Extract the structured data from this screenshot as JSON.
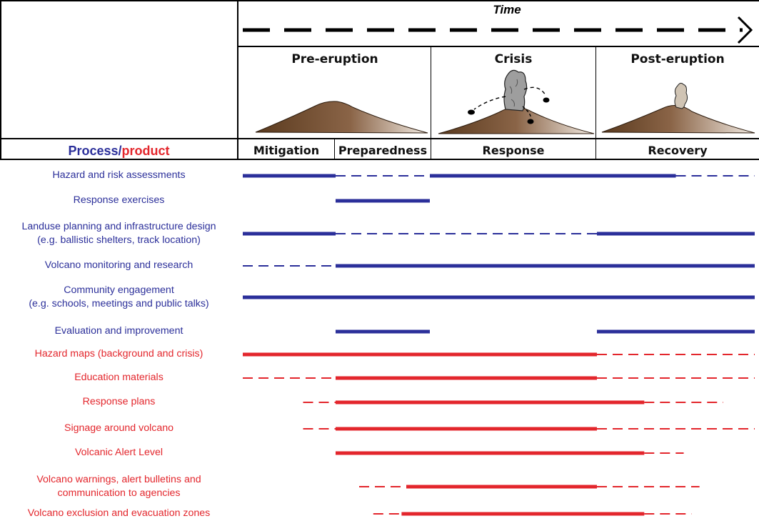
{
  "time_label": "Time",
  "phases": [
    {
      "title": "Pre-eruption"
    },
    {
      "title": "Crisis"
    },
    {
      "title": "Post-eruption"
    }
  ],
  "stages": [
    "Mitigation",
    "Preparedness",
    "Response",
    "Recovery"
  ],
  "header": {
    "process": "Process",
    "separator": "/",
    "product": "product"
  },
  "colors": {
    "process": "#2b2f9a",
    "product": "#e3262c",
    "ground_dark": "#5a3a1e",
    "ground_light": "#efe6dc",
    "plume": "#9e9e9e"
  },
  "chart_data": {
    "type": "timeline",
    "x_axis": "Time",
    "phases": [
      "Pre-eruption",
      "Crisis",
      "Post-eruption"
    ],
    "stages": [
      "Mitigation",
      "Preparedness",
      "Response",
      "Recovery"
    ],
    "stage_bounds": [
      [
        0,
        1
      ],
      [
        1,
        2
      ],
      [
        2,
        3
      ],
      [
        3,
        4
      ]
    ],
    "rows": [
      {
        "label": "Hazard and risk assessments",
        "kind": "process",
        "segments": [
          {
            "from": 0.0,
            "to": 1.0,
            "style": "solid"
          },
          {
            "from": 1.0,
            "to": 2.0,
            "style": "dashed"
          },
          {
            "from": 2.0,
            "to": 3.5,
            "style": "solid"
          },
          {
            "from": 3.5,
            "to": 4.0,
            "style": "dashed"
          }
        ]
      },
      {
        "label": "Response exercises",
        "kind": "process",
        "segments": [
          {
            "from": 1.0,
            "to": 2.0,
            "style": "solid"
          }
        ]
      },
      {
        "label": "Landuse planning and infrastructure design\n(e.g. ballistic shelters, track location)",
        "kind": "process",
        "segments": [
          {
            "from": 0.0,
            "to": 1.0,
            "style": "solid"
          },
          {
            "from": 1.0,
            "to": 3.0,
            "style": "dashed"
          },
          {
            "from": 3.0,
            "to": 4.0,
            "style": "solid"
          }
        ]
      },
      {
        "label": "Volcano monitoring and research",
        "kind": "process",
        "segments": [
          {
            "from": 0.0,
            "to": 1.0,
            "style": "dashed"
          },
          {
            "from": 1.0,
            "to": 4.0,
            "style": "solid"
          }
        ]
      },
      {
        "label": "Community engagement\n(e.g. schools, meetings and public talks)",
        "kind": "process",
        "segments": [
          {
            "from": 0.0,
            "to": 4.0,
            "style": "solid"
          }
        ]
      },
      {
        "label": "Evaluation and improvement",
        "kind": "process",
        "segments": [
          {
            "from": 1.0,
            "to": 2.0,
            "style": "solid"
          },
          {
            "from": 3.0,
            "to": 4.0,
            "style": "solid"
          }
        ]
      },
      {
        "label": "Hazard maps (background and crisis)",
        "kind": "product",
        "segments": [
          {
            "from": 0.0,
            "to": 3.0,
            "style": "solid"
          },
          {
            "from": 3.0,
            "to": 4.0,
            "style": "dashed"
          }
        ]
      },
      {
        "label": "Education materials",
        "kind": "product",
        "segments": [
          {
            "from": 0.0,
            "to": 1.0,
            "style": "dashed"
          },
          {
            "from": 1.0,
            "to": 3.0,
            "style": "solid"
          },
          {
            "from": 3.0,
            "to": 4.0,
            "style": "dashed"
          }
        ]
      },
      {
        "label": "Response plans",
        "kind": "product",
        "segments": [
          {
            "from": 0.65,
            "to": 1.0,
            "style": "dashed"
          },
          {
            "from": 1.0,
            "to": 3.3,
            "style": "solid"
          },
          {
            "from": 3.3,
            "to": 3.8,
            "style": "dashed"
          }
        ]
      },
      {
        "label": "Signage around volcano",
        "kind": "product",
        "segments": [
          {
            "from": 0.65,
            "to": 1.0,
            "style": "dashed"
          },
          {
            "from": 1.0,
            "to": 3.0,
            "style": "solid"
          },
          {
            "from": 3.0,
            "to": 4.0,
            "style": "dashed"
          }
        ]
      },
      {
        "label": "Volcanic Alert Level",
        "kind": "product",
        "segments": [
          {
            "from": 1.0,
            "to": 3.3,
            "style": "solid"
          },
          {
            "from": 3.3,
            "to": 3.55,
            "style": "dashed"
          }
        ]
      },
      {
        "label": "Volcano warnings, alert bulletins and\ncommunication to agencies",
        "kind": "product",
        "segments": [
          {
            "from": 1.25,
            "to": 1.75,
            "style": "dashed"
          },
          {
            "from": 1.75,
            "to": 3.0,
            "style": "solid"
          },
          {
            "from": 3.0,
            "to": 3.65,
            "style": "dashed"
          }
        ]
      },
      {
        "label": "Volcano exclusion and evacuation zones",
        "kind": "product",
        "segments": [
          {
            "from": 1.4,
            "to": 1.7,
            "style": "dashed"
          },
          {
            "from": 1.7,
            "to": 3.3,
            "style": "solid"
          },
          {
            "from": 3.3,
            "to": 3.6,
            "style": "dashed"
          }
        ]
      }
    ]
  }
}
